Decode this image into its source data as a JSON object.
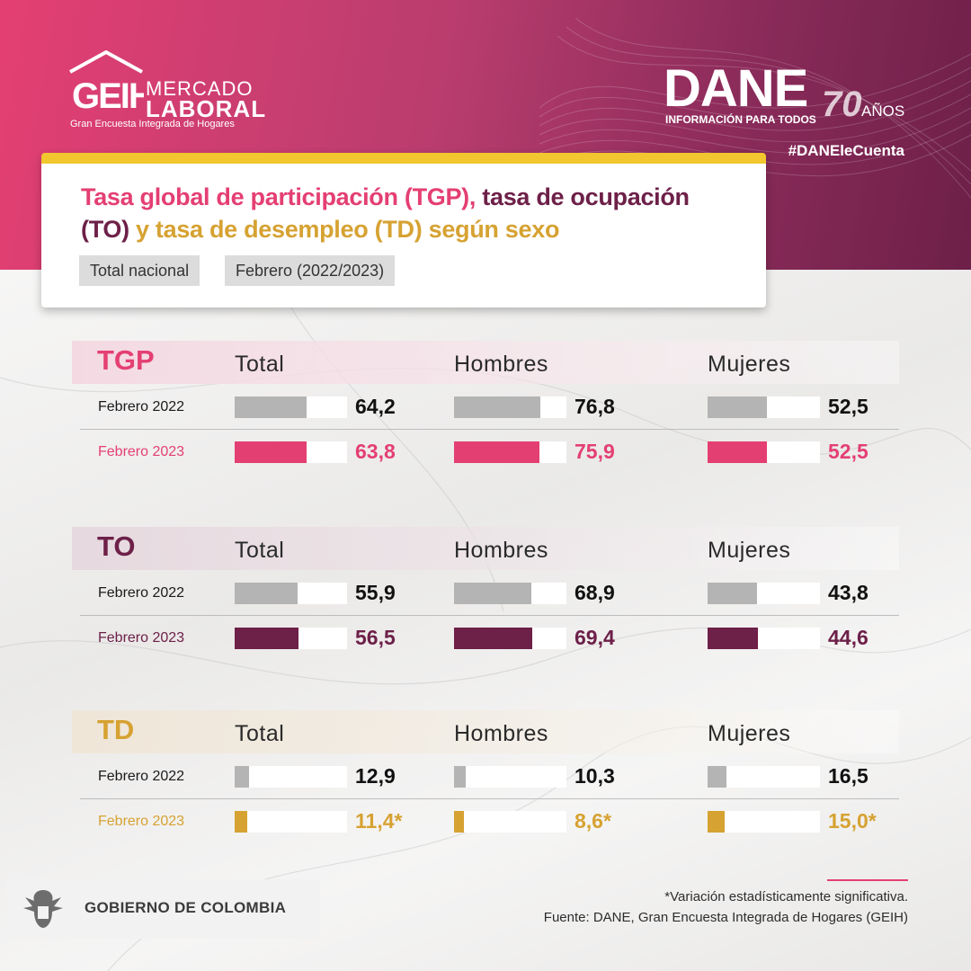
{
  "header": {
    "geih_mark": "GEIH",
    "geih_word1": "MERCADO",
    "geih_word2": "LABORAL",
    "geih_sub": "Gran Encuesta Integrada de Hogares",
    "dane_word": "DANE",
    "dane_sub": "INFORMACIÓN PARA TODOS",
    "dane_70": "70",
    "dane_anos": "AÑOS",
    "hashtag": "#DANEleCuenta",
    "brand_colors": {
      "pink": "#e43f73",
      "plum": "#6d2048",
      "gold": "#d6a232",
      "yellow": "#f1c62f"
    }
  },
  "title": {
    "part_tgp": "Tasa global de participación (TGP),",
    "part_to_a": "tasa de ocupación",
    "part_to_b": "(TO)",
    "part_td": "y tasa de desempleo (TD) según sexo",
    "pill_scope": "Total nacional",
    "pill_period": "Febrero (2022/2023)"
  },
  "chart_data": {
    "type": "bar",
    "categories": [
      "Total",
      "Hombres",
      "Mujeres"
    ],
    "periods": [
      "Febrero 2022",
      "Febrero 2023"
    ],
    "sections": [
      {
        "code": "TGP",
        "color": "#e43f73",
        "head_bg": "#f4d9e2",
        "series": [
          {
            "name": "Febrero 2022",
            "values": [
              64.2,
              76.8,
              52.5
            ],
            "labels": [
              "64,2",
              "76,8",
              "52,5"
            ]
          },
          {
            "name": "Febrero 2023",
            "values": [
              63.8,
              75.9,
              52.5
            ],
            "labels": [
              "63,8",
              "75,9",
              "52,5"
            ]
          }
        ]
      },
      {
        "code": "TO",
        "color": "#6d2048",
        "head_bg": "#e6d9df",
        "series": [
          {
            "name": "Febrero 2022",
            "values": [
              55.9,
              68.9,
              43.8
            ],
            "labels": [
              "55,9",
              "68,9",
              "43,8"
            ]
          },
          {
            "name": "Febrero 2023",
            "values": [
              56.5,
              69.4,
              44.6
            ],
            "labels": [
              "56,5",
              "69,4",
              "44,6"
            ]
          }
        ]
      },
      {
        "code": "TD",
        "color": "#d6a232",
        "head_bg": "#efe6d8",
        "series": [
          {
            "name": "Febrero 2022",
            "values": [
              12.9,
              10.3,
              16.5
            ],
            "labels": [
              "12,9",
              "10,3",
              "16,5"
            ]
          },
          {
            "name": "Febrero 2023",
            "values": [
              11.4,
              8.6,
              15.0
            ],
            "labels": [
              "11,4*",
              "8,6*",
              "15,0*"
            ]
          }
        ]
      }
    ],
    "baseline_color": "#b4b4b4",
    "ylim": [
      0,
      100
    ]
  },
  "footer": {
    "gov": "GOBIERNO DE COLOMBIA",
    "note1": "*Variación estadísticamente significativa.",
    "note2": "Fuente: DANE, Gran Encuesta Integrada de Hogares (GEIH)"
  }
}
